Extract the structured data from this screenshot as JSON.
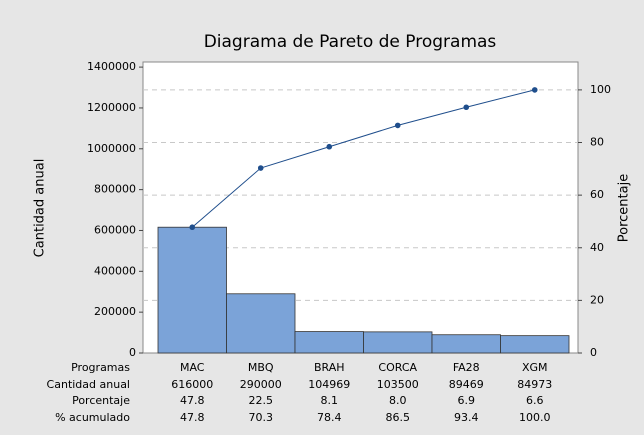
{
  "chart_data": {
    "type": "pareto",
    "title": "Diagrama de Pareto de Programas",
    "xlabel": "Programas",
    "ylabel": "Cantidad anual",
    "y2label": "Porcentaje",
    "categories": [
      "MAC",
      "MBQ",
      "BRAH",
      "CORCA",
      "FA28",
      "XGM"
    ],
    "series": [
      {
        "name": "Cantidad anual",
        "color": "#7ba3d8",
        "values": [
          616000,
          290000,
          104969,
          103500,
          89469,
          84973
        ]
      },
      {
        "name": "% acumulado",
        "color": "#1f4e8c",
        "axis": "y2",
        "values": [
          47.8,
          70.3,
          78.4,
          86.5,
          93.4,
          100.0
        ],
        "value_labels": [
          "47.8",
          "70.3",
          "78.4",
          "86.5",
          "93.4",
          "100.0"
        ]
      }
    ],
    "percentages": {
      "name": "Porcentaje",
      "values": [
        47.8,
        22.5,
        8.1,
        8.0,
        6.9,
        6.6
      ],
      "value_labels": [
        "47.8",
        "22.5",
        "8.1",
        "8.0",
        "6.9",
        "6.6"
      ]
    },
    "ylim": [
      0,
      1425000
    ],
    "yticks": [
      0,
      200000,
      400000,
      600000,
      800000,
      1000000,
      1200000,
      1400000
    ],
    "y2lim": [
      0,
      110.6
    ],
    "y2ticks": [
      0,
      20,
      40,
      60,
      80,
      100
    ],
    "grid": true
  }
}
